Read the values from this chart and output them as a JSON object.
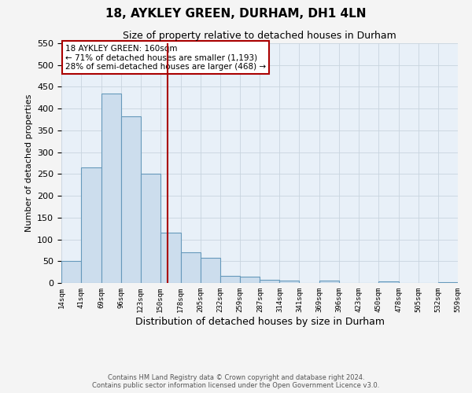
{
  "title": "18, AYKLEY GREEN, DURHAM, DH1 4LN",
  "subtitle": "Size of property relative to detached houses in Durham",
  "xlabel": "Distribution of detached houses by size in Durham",
  "ylabel": "Number of detached properties",
  "bar_color": "#ccdded",
  "bar_edge_color": "#6699bb",
  "bin_edges": [
    14,
    41,
    69,
    96,
    123,
    150,
    178,
    205,
    232,
    259,
    287,
    314,
    341,
    369,
    396,
    423,
    450,
    478,
    505,
    532,
    559
  ],
  "bar_heights": [
    50,
    265,
    435,
    383,
    250,
    115,
    70,
    58,
    16,
    14,
    8,
    5,
    0,
    5,
    0,
    0,
    3,
    0,
    0,
    2
  ],
  "tick_labels": [
    "14sqm",
    "41sqm",
    "69sqm",
    "96sqm",
    "123sqm",
    "150sqm",
    "178sqm",
    "205sqm",
    "232sqm",
    "259sqm",
    "287sqm",
    "314sqm",
    "341sqm",
    "369sqm",
    "396sqm",
    "423sqm",
    "450sqm",
    "478sqm",
    "505sqm",
    "532sqm",
    "559sqm"
  ],
  "ylim": [
    0,
    550
  ],
  "yticks": [
    0,
    50,
    100,
    150,
    200,
    250,
    300,
    350,
    400,
    450,
    500,
    550
  ],
  "vline_x": 160,
  "vline_color": "#aa0000",
  "annotation_title": "18 AYKLEY GREEN: 160sqm",
  "annotation_line1": "← 71% of detached houses are smaller (1,193)",
  "annotation_line2": "28% of semi-detached houses are larger (468) →",
  "annotation_box_color": "#ffffff",
  "annotation_box_edge": "#aa0000",
  "grid_color": "#c8d4de",
  "background_color": "#e8f0f8",
  "fig_background": "#f4f4f4",
  "footer1": "Contains HM Land Registry data © Crown copyright and database right 2024.",
  "footer2": "Contains public sector information licensed under the Open Government Licence v3.0."
}
